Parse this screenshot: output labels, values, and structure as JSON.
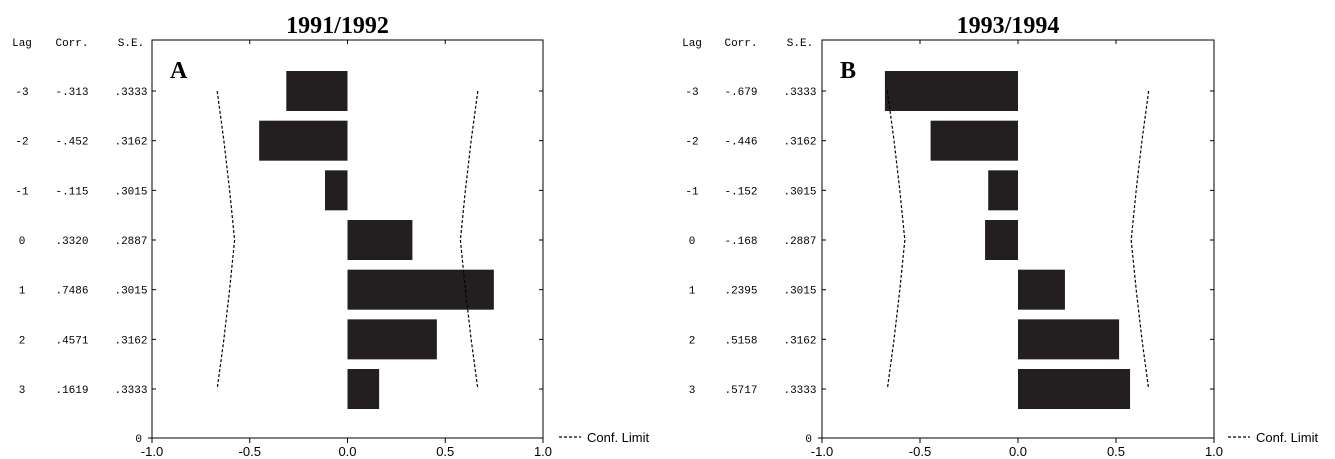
{
  "chart_data": [
    {
      "type": "bar",
      "orientation": "horizontal",
      "title": "1991/1992",
      "panel_letter": "A",
      "table_headers": {
        "lag": "Lag",
        "corr": "Corr.",
        "se": "S.E."
      },
      "lags": [
        "-3",
        "-2",
        "-1",
        "0",
        "1",
        "2",
        "3"
      ],
      "corr_labels": [
        "-.313",
        "-.452",
        "-.115",
        ".3320",
        ".7486",
        ".4571",
        ".1619"
      ],
      "se_labels": [
        ".3333",
        ".3162",
        ".3015",
        ".2887",
        ".3015",
        ".3162",
        ".3333"
      ],
      "values": [
        -0.313,
        -0.452,
        -0.115,
        0.332,
        0.7486,
        0.4571,
        0.1619
      ],
      "conf_limit": [
        0.6666,
        0.6324,
        0.603,
        0.5774,
        0.603,
        0.6324,
        0.6666
      ],
      "xlim": [
        -1.0,
        1.0
      ],
      "xticks": [
        "-1.0",
        "-0.5",
        "0.0",
        "0.5",
        "1.0"
      ],
      "xtick_values": [
        -1.0,
        -0.5,
        0.0,
        0.5,
        1.0
      ],
      "y_zero_label": "0",
      "legend": "Conf. Limit",
      "legend_position": "bottom-right"
    },
    {
      "type": "bar",
      "orientation": "horizontal",
      "title": "1993/1994",
      "panel_letter": "B",
      "table_headers": {
        "lag": "Lag",
        "corr": "Corr.",
        "se": "S.E."
      },
      "lags": [
        "-3",
        "-2",
        "-1",
        "0",
        "1",
        "2",
        "3"
      ],
      "corr_labels": [
        "-.679",
        "-.446",
        "-.152",
        "-.168",
        ".2395",
        ".5158",
        ".5717"
      ],
      "se_labels": [
        ".3333",
        ".3162",
        ".3015",
        ".2887",
        ".3015",
        ".3162",
        ".3333"
      ],
      "values": [
        -0.679,
        -0.446,
        -0.152,
        -0.168,
        0.2395,
        0.5158,
        0.5717
      ],
      "conf_limit": [
        0.6666,
        0.6324,
        0.603,
        0.5774,
        0.603,
        0.6324,
        0.6666
      ],
      "xlim": [
        -1.0,
        1.0
      ],
      "xticks": [
        "-1.0",
        "-0.5",
        "0.0",
        "0.5",
        "1.0"
      ],
      "xtick_values": [
        -1.0,
        -0.5,
        0.0,
        0.5,
        1.0
      ],
      "y_zero_label": "0",
      "legend": "Conf. Limit",
      "legend_position": "bottom-right"
    }
  ]
}
